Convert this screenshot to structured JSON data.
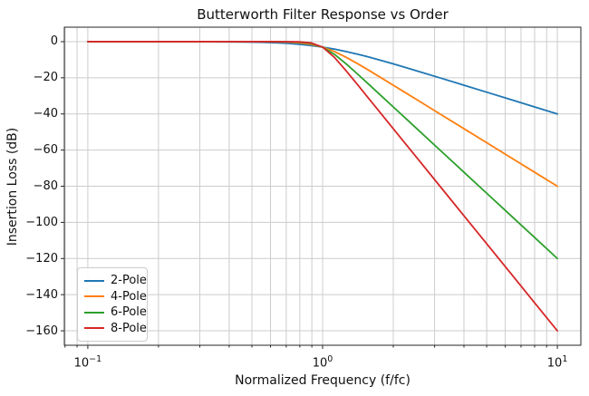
{
  "chart_data": {
    "type": "line",
    "title": "Butterworth Filter Response vs Order",
    "xlabel": "Normalized Frequency (f/fc)",
    "ylabel": "Insertion Loss (dB)",
    "x_scale": "log",
    "y_scale": "linear",
    "xlim": [
      0.079433,
      12.589
    ],
    "ylim": [
      -168,
      8
    ],
    "grid": true,
    "grid_which": "both",
    "grid_color": "#cccccc",
    "axis_color": "#262626",
    "legend_position": "lower left",
    "x_major_ticks": [
      {
        "value": 0.1,
        "base": "10",
        "exp": "−1"
      },
      {
        "value": 1.0,
        "base": "10",
        "exp": "0"
      },
      {
        "value": 10.0,
        "base": "10",
        "exp": "1"
      }
    ],
    "x_minor_ticks": [
      0.08,
      0.09,
      0.2,
      0.3,
      0.4,
      0.5,
      0.6,
      0.7,
      0.8,
      0.9,
      2,
      3,
      4,
      5,
      6,
      7,
      8,
      9
    ],
    "y_ticks": [
      {
        "value": 0,
        "label": "0"
      },
      {
        "value": -20,
        "label": "−20"
      },
      {
        "value": -40,
        "label": "−40"
      },
      {
        "value": -60,
        "label": "−60"
      },
      {
        "value": -80,
        "label": "−80"
      },
      {
        "value": -100,
        "label": "−100"
      },
      {
        "value": -120,
        "label": "−120"
      },
      {
        "value": -140,
        "label": "−140"
      },
      {
        "value": -160,
        "label": "−160"
      }
    ],
    "x": [
      0.1,
      0.126,
      0.158,
      0.2,
      0.251,
      0.316,
      0.398,
      0.447,
      0.501,
      0.562,
      0.631,
      0.708,
      0.794,
      0.891,
      1.0,
      1.122,
      1.259,
      1.413,
      1.585,
      1.778,
      1.995,
      2.239,
      2.512,
      3.162,
      3.981,
      5.012,
      6.31,
      7.943,
      10.0
    ],
    "series": [
      {
        "name": "2-Pole",
        "color": "#1f77b4",
        "values": [
          -0.0004,
          -0.0011,
          -0.0027,
          -0.0069,
          -0.0172,
          -0.0432,
          -0.1077,
          -0.1695,
          -0.2657,
          -0.4139,
          -0.6387,
          -0.9726,
          -1.455,
          -2.124,
          -3.01,
          -4.125,
          -5.456,
          -6.973,
          -8.639,
          -10.414,
          -12.266,
          -14.17,
          -16.108,
          -20.043,
          -24.017,
          -28.007,
          -32.003,
          -36.001,
          -40.0
        ]
      },
      {
        "name": "4-Pole",
        "color": "#ff7f0e",
        "values": [
          0,
          0,
          0,
          0,
          -0.0001,
          -0.0004,
          -0.0027,
          -0.0069,
          -0.0172,
          -0.0432,
          -0.1077,
          -0.2657,
          -0.6387,
          -1.455,
          -3.01,
          -5.456,
          -8.639,
          -12.266,
          -16.108,
          -20.043,
          -24.017,
          -28.007,
          -32.003,
          -40.0,
          -48.0,
          -56.0,
          -64.0,
          -72.0,
          -80.0
        ]
      },
      {
        "name": "6-Pole",
        "color": "#2ca02c",
        "values": [
          0,
          0,
          0,
          0,
          0,
          0,
          -0.0001,
          -0.0003,
          -0.0011,
          -0.0043,
          -0.0172,
          -0.0683,
          -0.2657,
          -0.9726,
          -3.01,
          -6.973,
          -12.266,
          -18.069,
          -24.017,
          -30.004,
          -36.001,
          -42.0,
          -48.0,
          -60.0,
          -72.0,
          -84.0,
          -96.0,
          -108.0,
          -120.0
        ]
      },
      {
        "name": "8-Pole",
        "color": "#d62728",
        "values": [
          0,
          0,
          0,
          0,
          0,
          0,
          0,
          0,
          -0.0001,
          -0.0004,
          -0.0027,
          -0.0172,
          -0.1077,
          -0.6387,
          -3.01,
          -8.639,
          -16.108,
          -24.017,
          -32.003,
          -40.0,
          -48.0,
          -56.0,
          -64.0,
          -80.0,
          -96.0,
          -112.0,
          -128.0,
          -144.0,
          -160.0
        ]
      }
    ]
  }
}
